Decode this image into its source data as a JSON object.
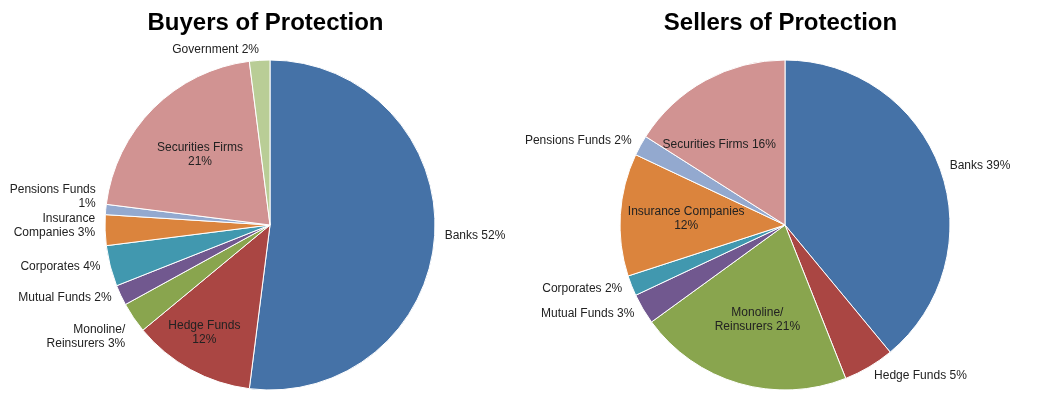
{
  "chart_data": [
    {
      "type": "pie",
      "title": "Buyers of Protection",
      "categories": [
        "Banks",
        "Hedge Funds",
        "Monoline/\nReinsurers",
        "Mutual Funds",
        "Corporates",
        "Insurance\nCompanies",
        "Pensions Funds",
        "Securities Firms",
        "Government"
      ],
      "values": [
        52,
        12,
        3,
        2,
        4,
        3,
        1,
        21,
        2
      ],
      "value_labels": [
        "52%",
        "12%",
        "3%",
        "2%",
        "4%",
        "3%",
        "1%",
        "21%",
        "2%"
      ],
      "colors": [
        "#4572a7",
        "#aa4643",
        "#89a54e",
        "#71588f",
        "#4198af",
        "#db843d",
        "#93a9cf",
        "#d19392",
        "#b9cd96"
      ]
    },
    {
      "type": "pie",
      "title": "Sellers of Protection",
      "categories": [
        "Banks",
        "Hedge Funds",
        "Monoline/\nReinsurers",
        "Mutual Funds",
        "Corporates",
        "Insurance Companies",
        "Pensions Funds",
        "Securities Firms"
      ],
      "values": [
        39,
        5,
        21,
        3,
        2,
        12,
        2,
        16
      ],
      "value_labels": [
        "39%",
        "5%",
        "21%",
        "3%",
        "2%",
        "12%",
        "2%",
        "16%"
      ],
      "colors": [
        "#4572a7",
        "#aa4643",
        "#89a54e",
        "#71588f",
        "#4198af",
        "#db843d",
        "#93a9cf",
        "#d19392"
      ]
    }
  ]
}
